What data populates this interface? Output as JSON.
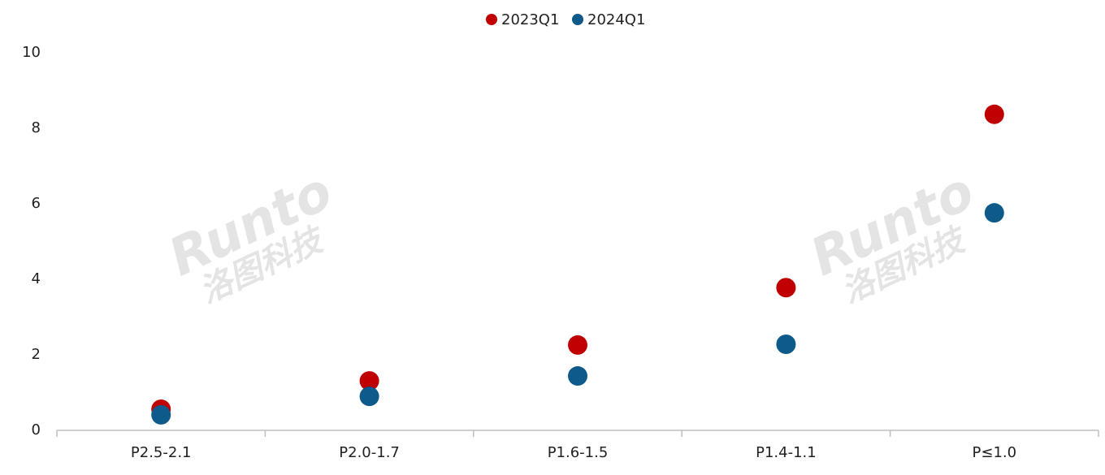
{
  "chart_data": {
    "type": "dot",
    "categories": [
      "P2.5-2.1",
      "P2.0-1.7",
      "P1.6-1.5",
      "P1.4-1.1",
      "P≤1.0"
    ],
    "series": [
      {
        "name": "2023Q1",
        "color": "#c00000",
        "values": [
          0.56,
          1.31,
          2.26,
          3.78,
          8.37
        ]
      },
      {
        "name": "2024Q1",
        "color": "#0e5a8a",
        "values": [
          0.41,
          0.9,
          1.44,
          2.28,
          5.76
        ]
      }
    ],
    "ylim": [
      0,
      10
    ],
    "yticks": [
      0,
      2,
      4,
      6,
      8,
      10
    ],
    "grid": false,
    "legend": "top",
    "watermark": [
      "Runto",
      "洛图科技"
    ]
  }
}
